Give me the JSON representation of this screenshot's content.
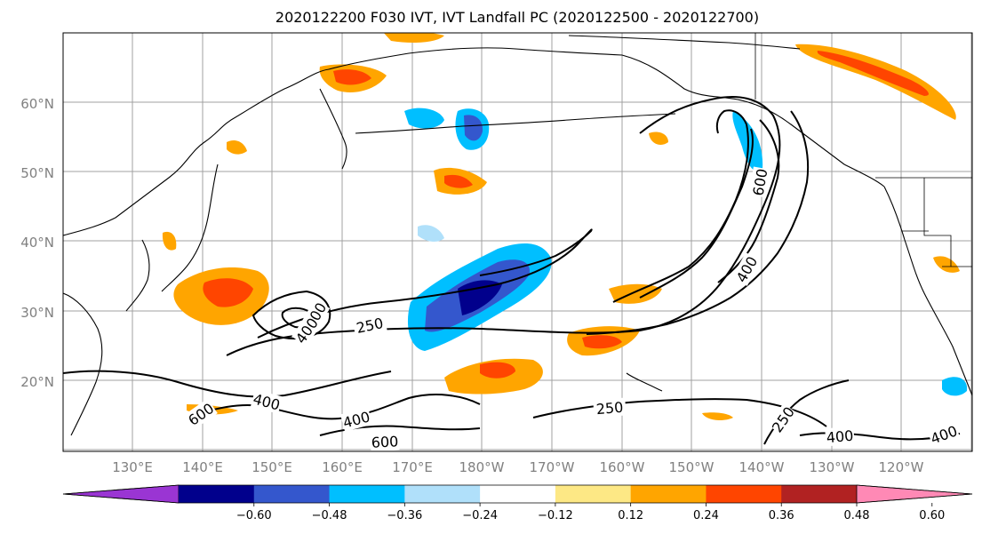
{
  "title": "2020122200 F030 IVT, IVT Landfall PC (2020122500 - 2020122700)",
  "map": {
    "lat_labels": [
      "60°N",
      "50°N",
      "40°N",
      "30°N",
      "20°N"
    ],
    "lon_labels": [
      "130°E",
      "140°E",
      "150°E",
      "160°E",
      "170°E",
      "180°W",
      "170°W",
      "160°W",
      "150°W",
      "140°W",
      "130°W",
      "120°W"
    ],
    "grid": true,
    "contour_labels": [
      "600",
      "400",
      "400",
      "250",
      "600",
      "250",
      "400",
      "600",
      "600",
      "400",
      "250",
      "400",
      "400"
    ]
  },
  "colorbar": {
    "colors": [
      "#9a35d3",
      "#01008c",
      "#3457cd",
      "#00bfff",
      "#b0e0fa",
      "#ffffff",
      "#fde885",
      "#ffa500",
      "#ff4500",
      "#b12222",
      "#ff89b5"
    ],
    "tick_labels": [
      "−0.60",
      "−0.48",
      "−0.36",
      "−0.24",
      "−0.12",
      "0.12",
      "0.24",
      "0.36",
      "0.48",
      "0.60"
    ]
  }
}
